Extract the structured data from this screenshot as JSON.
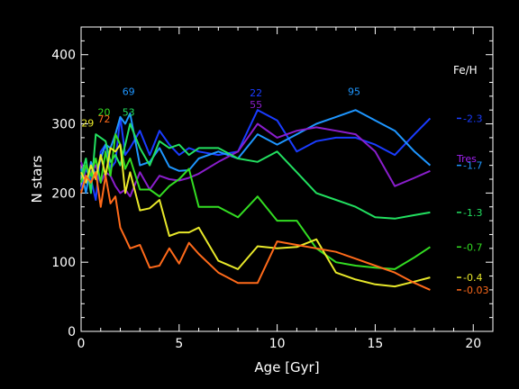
{
  "chart_data": {
    "type": "line",
    "title": "",
    "xlabel": "Age [Gyr]",
    "ylabel": "N stars",
    "xlim": [
      0,
      21
    ],
    "ylim": [
      0,
      440
    ],
    "xticks": [
      0,
      5,
      10,
      15,
      20
    ],
    "yticks": [
      0,
      100,
      200,
      300,
      400
    ],
    "grid": false,
    "legend_title": "Fe/H",
    "extra_legend_label": "Tres",
    "colors": {
      "background": "#000000",
      "axes": "#ffffff",
      "legend_title": "#ffffff",
      "extra_legend_label": "#a020f0"
    },
    "series": [
      {
        "name": "-2.3",
        "color": "#1a3cff",
        "x": [
          0,
          0.25,
          0.5,
          0.75,
          1,
          1.25,
          1.5,
          1.75,
          2,
          2.25,
          2.5,
          3,
          3.5,
          4,
          4.5,
          5,
          5.5,
          6,
          7,
          8,
          9,
          10,
          11,
          12,
          13,
          14,
          15,
          16,
          17,
          17.8
        ],
        "y": [
          205,
          235,
          220,
          190,
          260,
          270,
          235,
          245,
          310,
          255,
          265,
          290,
          255,
          290,
          270,
          255,
          265,
          260,
          255,
          260,
          320,
          305,
          260,
          275,
          280,
          280,
          270,
          255,
          285,
          308
        ]
      },
      {
        "name": "-1.7",
        "color": "#1e96ff",
        "x": [
          0,
          0.25,
          0.5,
          0.75,
          1,
          1.25,
          1.5,
          1.75,
          2,
          2.25,
          2.5,
          3,
          3.5,
          4,
          4.5,
          5,
          5.5,
          6,
          7,
          8,
          9,
          10,
          11,
          12,
          13,
          14,
          15,
          16,
          17,
          17.8
        ],
        "y": [
          235,
          200,
          245,
          225,
          250,
          270,
          265,
          285,
          310,
          300,
          315,
          240,
          245,
          265,
          238,
          232,
          233,
          250,
          260,
          250,
          285,
          270,
          285,
          300,
          310,
          320,
          305,
          290,
          260,
          240
        ]
      },
      {
        "name": "Tres",
        "color": "#8a1ecc",
        "x": [
          0,
          0.25,
          0.5,
          0.75,
          1,
          1.25,
          1.5,
          1.75,
          2,
          2.25,
          2.5,
          3,
          3.5,
          4,
          4.5,
          5,
          5.5,
          6,
          7,
          8,
          9,
          10,
          11,
          12,
          13,
          14,
          15,
          16,
          17,
          17.8
        ],
        "y": [
          245,
          220,
          230,
          240,
          215,
          230,
          225,
          210,
          200,
          205,
          195,
          230,
          205,
          225,
          220,
          218,
          222,
          228,
          245,
          260,
          300,
          280,
          290,
          295,
          290,
          285,
          260,
          210,
          222,
          232
        ]
      },
      {
        "name": "-1.3",
        "color": "#22e060",
        "x": [
          0,
          0.25,
          0.5,
          0.75,
          1,
          1.25,
          1.5,
          1.75,
          2,
          2.25,
          2.5,
          3,
          3.5,
          4,
          4.5,
          5,
          5.5,
          6,
          7,
          8,
          9,
          10,
          11,
          12,
          13,
          14,
          15,
          16,
          17,
          17.8
        ],
        "y": [
          225,
          250,
          200,
          285,
          280,
          275,
          245,
          255,
          240,
          270,
          300,
          265,
          240,
          275,
          265,
          270,
          255,
          265,
          265,
          250,
          245,
          260,
          230,
          200,
          190,
          180,
          165,
          163,
          168,
          172
        ]
      },
      {
        "name": "-0.7",
        "color": "#33dd22",
        "x": [
          0,
          0.25,
          0.5,
          0.75,
          1,
          1.25,
          1.5,
          1.75,
          2,
          2.25,
          2.5,
          3,
          3.5,
          4,
          4.5,
          5,
          5.5,
          6,
          7,
          8,
          9,
          10,
          11,
          12,
          13,
          14,
          15,
          16,
          17,
          17.8
        ],
        "y": [
          215,
          240,
          225,
          250,
          215,
          260,
          225,
          285,
          270,
          235,
          250,
          205,
          205,
          195,
          210,
          220,
          235,
          180,
          180,
          165,
          195,
          160,
          160,
          120,
          100,
          95,
          92,
          90,
          107,
          122
        ]
      },
      {
        "name": "-0.4",
        "color": "#e8e82a",
        "x": [
          0,
          0.25,
          0.5,
          0.75,
          1,
          1.25,
          1.5,
          1.75,
          2,
          2.25,
          2.5,
          3,
          3.5,
          4,
          4.5,
          5,
          5.5,
          6,
          7,
          8,
          9,
          10,
          11,
          12,
          13,
          14,
          15,
          16,
          17,
          17.8
        ],
        "y": [
          230,
          215,
          240,
          220,
          255,
          225,
          265,
          260,
          270,
          200,
          230,
          175,
          178,
          190,
          138,
          143,
          143,
          150,
          102,
          90,
          123,
          120,
          122,
          133,
          85,
          75,
          68,
          65,
          72,
          78
        ]
      },
      {
        "name": "-0.03",
        "color": "#ff6a1a",
        "x": [
          0,
          0.25,
          0.5,
          0.75,
          1,
          1.25,
          1.5,
          1.75,
          2,
          2.25,
          2.5,
          3,
          3.5,
          4,
          4.5,
          5,
          5.5,
          6,
          7,
          8,
          9,
          10,
          11,
          12,
          13,
          14,
          15,
          16,
          17,
          17.8
        ],
        "y": [
          200,
          225,
          215,
          230,
          180,
          225,
          185,
          195,
          150,
          135,
          120,
          125,
          92,
          95,
          120,
          98,
          128,
          112,
          85,
          70,
          70,
          130,
          125,
          120,
          115,
          105,
          95,
          85,
          70,
          60
        ]
      }
    ],
    "annotations": [
      {
        "text": "29",
        "x": 0.01,
        "y": 296,
        "color": "#e8e82a"
      },
      {
        "text": "20",
        "x": 0.85,
        "y": 312,
        "color": "#33dd22"
      },
      {
        "text": "72",
        "x": 0.85,
        "y": 302,
        "color": "#ff6a1a"
      },
      {
        "text": "53",
        "x": 2.1,
        "y": 312,
        "color": "#22e060"
      },
      {
        "text": "69",
        "x": 2.1,
        "y": 342,
        "color": "#1e96ff"
      },
      {
        "text": "22",
        "x": 8.6,
        "y": 340,
        "color": "#1a3cff"
      },
      {
        "text": "55",
        "x": 8.6,
        "y": 323,
        "color": "#8a1ecc"
      },
      {
        "text": "95",
        "x": 13.6,
        "y": 342,
        "color": "#1e96ff"
      }
    ]
  }
}
